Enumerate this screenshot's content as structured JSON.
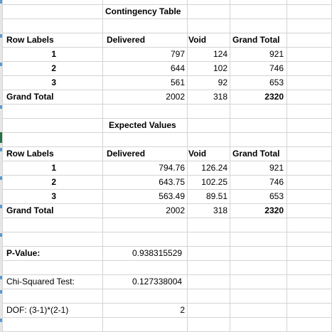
{
  "contingency": {
    "title": "Contingency Table",
    "headers": {
      "row_labels": "Row Labels",
      "delivered": "Delivered",
      "void": "Void",
      "grand_total": "Grand Total"
    },
    "rows": [
      {
        "label": "1",
        "delivered": "797",
        "void": "124",
        "total": "921"
      },
      {
        "label": "2",
        "delivered": "644",
        "void": "102",
        "total": "746"
      },
      {
        "label": "3",
        "delivered": "561",
        "void": "92",
        "total": "653"
      }
    ],
    "grand_total": {
      "label": "Grand Total",
      "delivered": "2002",
      "void": "318",
      "total": "2320"
    }
  },
  "expected": {
    "title": "Expected Values",
    "headers": {
      "row_labels": "Row Labels",
      "delivered": "Delivered",
      "void": "Void",
      "grand_total": "Grand Total"
    },
    "rows": [
      {
        "label": "1",
        "delivered": "794.76",
        "void": "126.24",
        "total": "921"
      },
      {
        "label": "2",
        "delivered": "643.75",
        "void": "102.25",
        "total": "746"
      },
      {
        "label": "3",
        "delivered": "563.49",
        "void": "89.51",
        "total": "653"
      }
    ],
    "grand_total": {
      "label": "Grand Total",
      "delivered": "2002",
      "void": "318",
      "total": "2320"
    }
  },
  "stats": {
    "p_value_label": "P-Value:",
    "p_value": "0.938315529",
    "chi_label": "Chi-Squared Test:",
    "chi_value": "0.127338004",
    "dof_label": "DOF: (3-1)*(2-1)",
    "dof_value": "2"
  },
  "colors": {
    "gridline": "#d4d4d4",
    "selection_accent": "#217346",
    "row_marker": "#5b9bd5"
  }
}
